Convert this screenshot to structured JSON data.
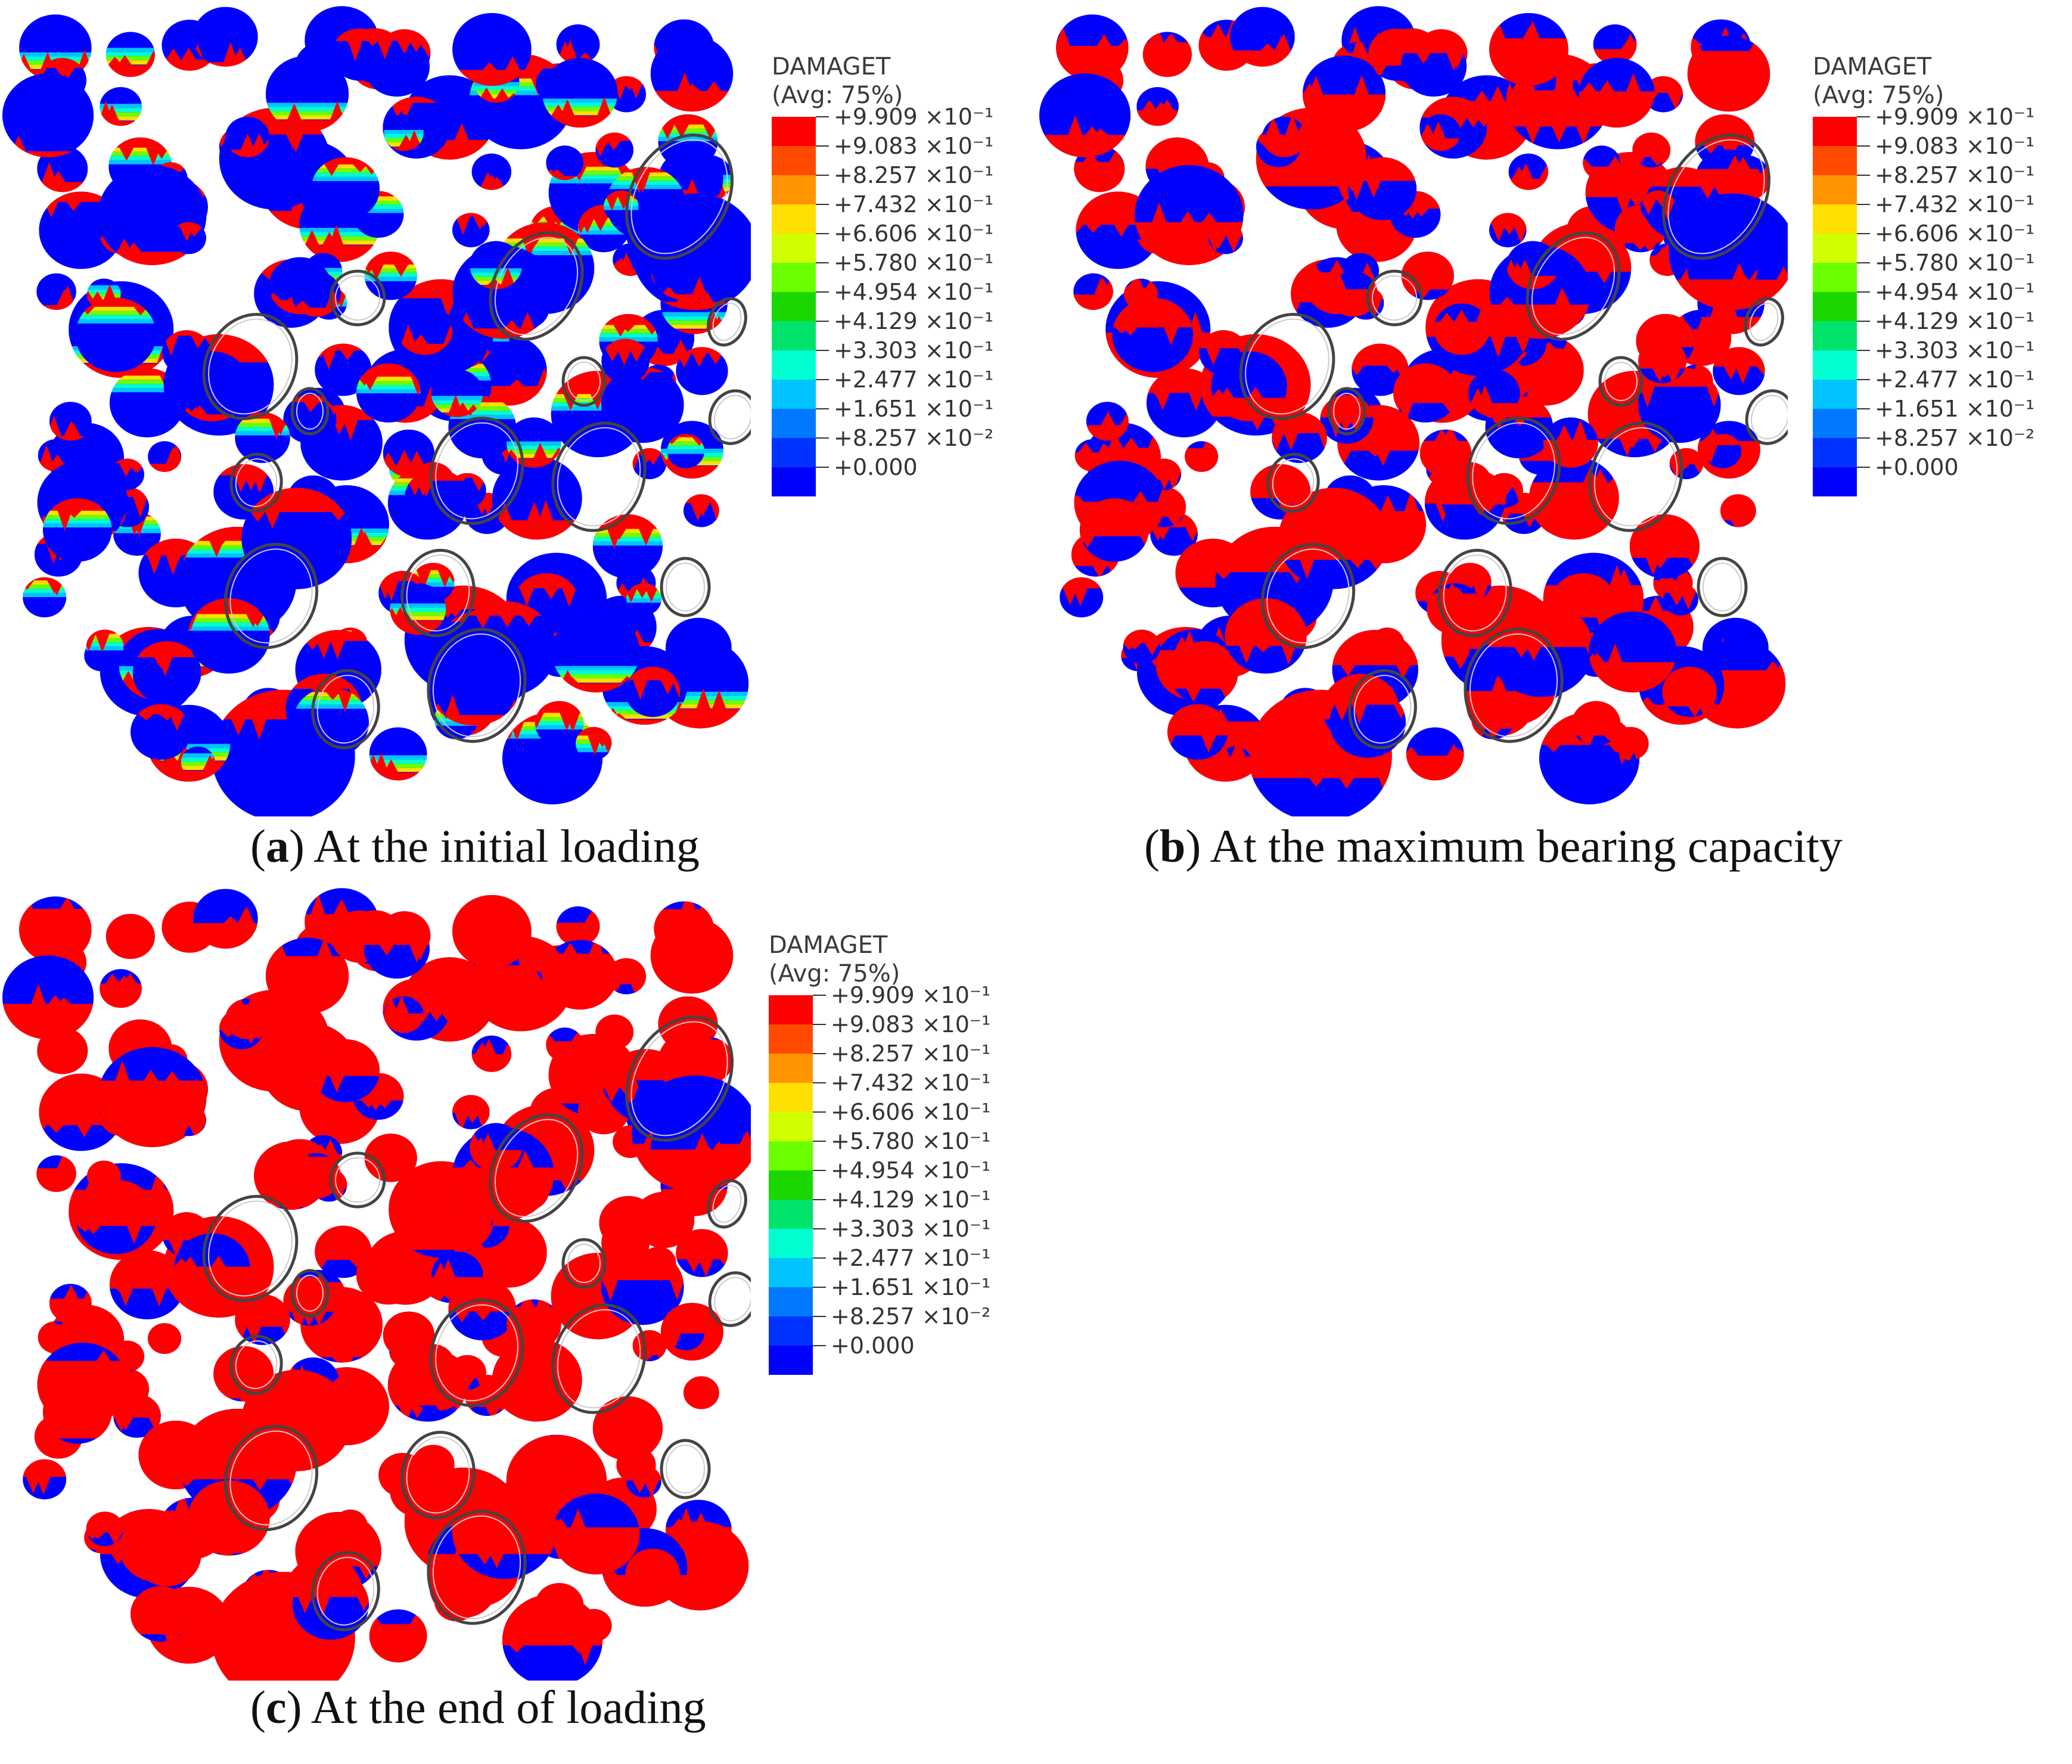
{
  "legend": {
    "title": "DAMAGET",
    "subtitle": "(Avg: 75%)",
    "labels": [
      "+9.909 ×10⁻¹",
      "+9.083 ×10⁻¹",
      "+8.257 ×10⁻¹",
      "+7.432 ×10⁻¹",
      "+6.606 ×10⁻¹",
      "+5.780 ×10⁻¹",
      "+4.954 ×10⁻¹",
      "+4.129 ×10⁻¹",
      "+3.303 ×10⁻¹",
      "+2.477 ×10⁻¹",
      "+1.651 ×10⁻¹",
      "+8.257 ×10⁻²",
      "+0.000"
    ],
    "colors": [
      "#ff0000",
      "#ff4a00",
      "#ff9400",
      "#ffdf00",
      "#d0ff00",
      "#6bff00",
      "#1bd700",
      "#00e36b",
      "#00ffd0",
      "#00c4ff",
      "#0079ff",
      "#0033ff",
      "#0000ff"
    ]
  },
  "panels": [
    {
      "letter": "a",
      "caption": ") At the initial loading",
      "damage_level": 0.18
    },
    {
      "letter": "b",
      "caption": ") At the maximum bearing capacity",
      "damage_level": 0.48
    },
    {
      "letter": "c",
      "caption": ") At the end of loading",
      "damage_level": 0.72
    }
  ],
  "palette": {
    "damaged": "#ff0000",
    "undamaged": "#0000ff",
    "outline": "#444444"
  }
}
